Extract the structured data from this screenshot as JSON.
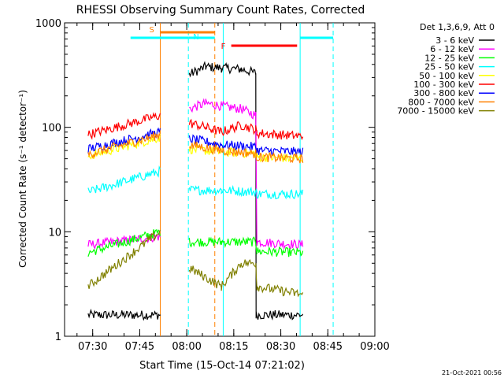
{
  "chart_data": {
    "type": "line",
    "title": "RHESSI Observing Summary Count Rates, Corrected",
    "ylabel": "Corrected Count Rate (s⁻¹ detector⁻¹)",
    "xlabel": "Start Time (15-Oct-14 07:21:02)",
    "y_scale": "log",
    "ylim": [
      1,
      1000
    ],
    "y_ticks": [
      {
        "value": 1,
        "label": "1"
      },
      {
        "value": 10,
        "label": "10"
      },
      {
        "value": 100,
        "label": "100"
      },
      {
        "value": 1000,
        "label": "1000"
      }
    ],
    "xlim": [
      "07:21",
      "09:00"
    ],
    "x_ticks": [
      "07:30",
      "07:45",
      "08:00",
      "08:15",
      "08:30",
      "08:45",
      "09:00"
    ],
    "legend_title": "Det 1,3,6,9, Att 0",
    "legend_placement": "right",
    "series": [
      {
        "name": "3 - 6 keV",
        "color": "#000000",
        "values": [
          [
            450,
            1.6
          ],
          [
            1835,
            1.6
          ],
          [
            2385,
            320
          ],
          [
            2700,
            380
          ],
          [
            3000,
            370
          ],
          [
            3380,
            360
          ],
          [
            3660,
            330
          ],
          [
            3665,
            1.6
          ],
          [
            4560,
            1.6
          ]
        ]
      },
      {
        "name": "6 - 12 keV",
        "color": "#ff00ff",
        "values": [
          [
            450,
            7.5
          ],
          [
            1830,
            9
          ],
          [
            2385,
            150
          ],
          [
            2700,
            170
          ],
          [
            3000,
            160
          ],
          [
            3380,
            150
          ],
          [
            3660,
            130
          ],
          [
            3680,
            8
          ],
          [
            4560,
            7.5
          ]
        ]
      },
      {
        "name": "12 - 25 keV",
        "color": "#00ff00",
        "values": [
          [
            450,
            6.3
          ],
          [
            1830,
            10
          ],
          [
            2385,
            8
          ],
          [
            3000,
            8
          ],
          [
            3660,
            8
          ],
          [
            3680,
            6.5
          ],
          [
            4560,
            6.3
          ]
        ]
      },
      {
        "name": "25 - 50 keV",
        "color": "#00ffff",
        "values": [
          [
            450,
            24
          ],
          [
            1830,
            38
          ],
          [
            2385,
            25
          ],
          [
            3000,
            25
          ],
          [
            3660,
            24
          ],
          [
            3680,
            23
          ],
          [
            4560,
            23
          ]
        ]
      },
      {
        "name": "50 - 100 keV",
        "color": "#ffff00",
        "values": [
          [
            450,
            53
          ],
          [
            1830,
            80
          ],
          [
            2385,
            62
          ],
          [
            3000,
            58
          ],
          [
            3660,
            56
          ],
          [
            3680,
            52
          ],
          [
            4560,
            50
          ]
        ]
      },
      {
        "name": "100 - 300 keV",
        "color": "#ff0000",
        "values": [
          [
            450,
            85
          ],
          [
            1830,
            130
          ],
          [
            2385,
            110
          ],
          [
            2700,
            100
          ],
          [
            3000,
            90
          ],
          [
            3380,
            105
          ],
          [
            3660,
            95
          ],
          [
            3680,
            88
          ],
          [
            4560,
            82
          ]
        ]
      },
      {
        "name": "300 - 800 keV",
        "color": "#0000ff",
        "values": [
          [
            450,
            62
          ],
          [
            1830,
            90
          ],
          [
            2385,
            78
          ],
          [
            3000,
            68
          ],
          [
            3660,
            65
          ],
          [
            3680,
            60
          ],
          [
            4560,
            58
          ]
        ]
      },
      {
        "name": "800 - 7000 keV",
        "color": "#ff8000",
        "values": [
          [
            450,
            55
          ],
          [
            1830,
            85
          ],
          [
            2385,
            68
          ],
          [
            3000,
            60
          ],
          [
            3660,
            56
          ],
          [
            3680,
            52
          ],
          [
            4560,
            50
          ]
        ]
      },
      {
        "name": "7000 - 15000 keV",
        "color": "#808000",
        "values": [
          [
            450,
            3
          ],
          [
            1830,
            10
          ],
          [
            2385,
            4.5
          ],
          [
            3000,
            3
          ],
          [
            3380,
            5
          ],
          [
            3660,
            5
          ],
          [
            3680,
            3
          ],
          [
            4560,
            2.5
          ]
        ]
      }
    ],
    "time_markers": [
      {
        "label": "S",
        "t": 1831,
        "color": "#ff8000",
        "style": "solid"
      },
      {
        "label": "",
        "t": 2369,
        "color": "#00ffff",
        "style": "dashed"
      },
      {
        "label": "",
        "t": 2875,
        "color": "#ff8000",
        "style": "dashed"
      },
      {
        "label": "",
        "t": 3036,
        "color": "#00ffff",
        "style": "solid"
      },
      {
        "label": "",
        "t": 4508,
        "color": "#00ffff",
        "style": "solid"
      },
      {
        "label": "",
        "t": 5140,
        "color": "#00ffff",
        "style": "dashed"
      }
    ],
    "state_bars": [
      {
        "label": "",
        "start": 1262,
        "end": 2369,
        "color": "#00ffff"
      },
      {
        "label": "N",
        "start": 2369,
        "end": 2875,
        "color": "#00ffff"
      },
      {
        "label": "",
        "start": 1831,
        "end": 2875,
        "color": "#ff8000"
      },
      {
        "label": "F",
        "start": 3190,
        "end": 4450,
        "color": "#ff0000"
      },
      {
        "label": "",
        "start": 4508,
        "end": 5140,
        "color": "#00ffff"
      }
    ],
    "footer_date": "21-Oct-2021 00:56"
  }
}
